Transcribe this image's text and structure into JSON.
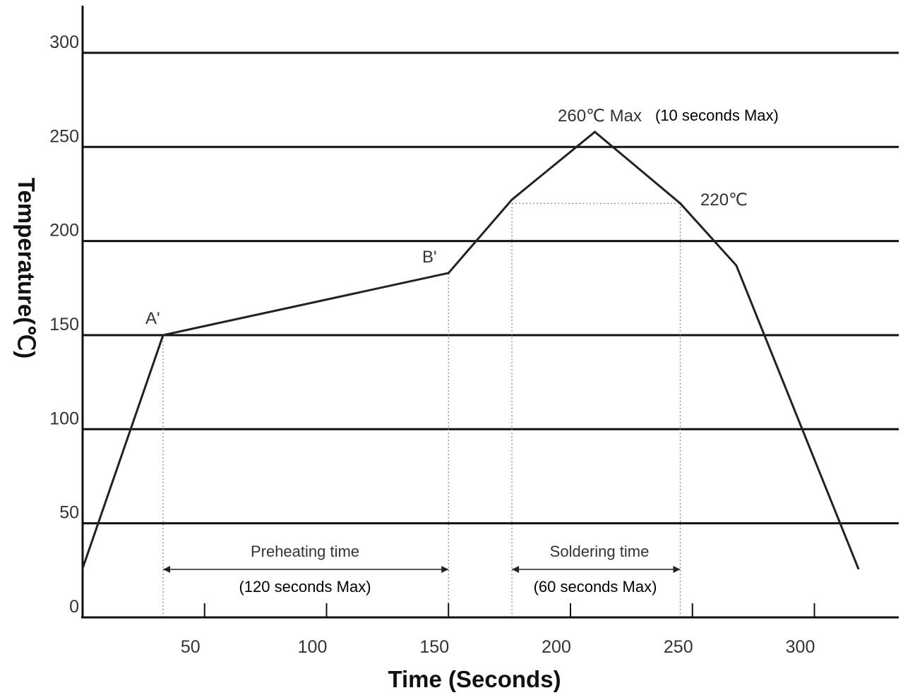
{
  "chart_data": {
    "type": "line",
    "xlabel": "Time (Seconds)",
    "ylabel": "Temperature(℃)",
    "xlim": [
      0,
      330
    ],
    "ylim": [
      0,
      325
    ],
    "x_ticks": [
      50,
      100,
      150,
      200,
      250,
      300
    ],
    "x_tick_marks": [
      50,
      100,
      150,
      200,
      250,
      300
    ],
    "y_ticks": [
      0,
      50,
      100,
      150,
      200,
      250,
      300
    ],
    "y_gridlines": [
      50,
      100,
      150,
      200,
      250,
      300
    ],
    "grid": "horizontal",
    "series": [
      {
        "x": [
          0,
          33,
          150,
          176,
          210,
          245,
          268,
          318
        ],
        "y": [
          26,
          150,
          183,
          222,
          258,
          220,
          187,
          26
        ]
      }
    ],
    "guide_lines": [
      {
        "from": [
          33,
          0
        ],
        "to": [
          33,
          150
        ]
      },
      {
        "from": [
          150,
          0
        ],
        "to": [
          150,
          183
        ]
      },
      {
        "from": [
          176,
          0
        ],
        "to": [
          176,
          220
        ]
      },
      {
        "from": [
          245,
          0
        ],
        "to": [
          245,
          220
        ]
      },
      {
        "from": [
          176,
          220
        ],
        "to": [
          245,
          220
        ]
      }
    ],
    "annotations": {
      "a_prime": "A'",
      "b_prime": "B'",
      "peak_temp": "260℃ Max",
      "peak_time": "(10 seconds Max)",
      "temp_220": "220℃",
      "preheat_label": "Preheating time",
      "preheat_limit": "(120 seconds Max)",
      "solder_label": "Soldering time",
      "solder_limit": "(60 seconds Max)"
    },
    "colors": {
      "line": "#222222",
      "grid": "#111111",
      "guide": "#888888"
    }
  }
}
